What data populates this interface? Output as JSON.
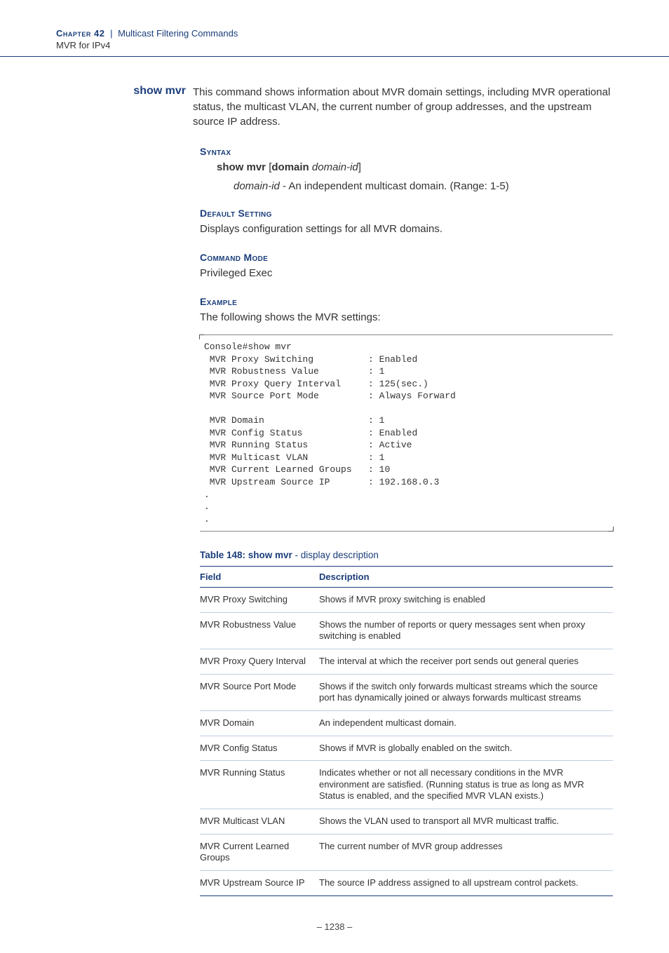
{
  "header": {
    "chapter_label": "Chapter 42",
    "chapter_title": "Multicast Filtering Commands",
    "subtitle": "MVR for IPv4"
  },
  "command": {
    "name": "show mvr",
    "description": "This command shows information about MVR domain settings, including MVR operational status, the multicast VLAN, the current number of group addresses, and the upstream source IP address."
  },
  "syntax": {
    "label": "Syntax",
    "cmd_bold1": "show mvr",
    "bracket_open": "[",
    "cmd_bold2": "domain",
    "cmd_italic": "domain-id",
    "bracket_close": "]",
    "param_name": "domain-id",
    "param_desc": " - An independent multicast domain. (Range: 1-5)"
  },
  "default_setting": {
    "label": "Default Setting",
    "text": "Displays configuration settings for all MVR domains."
  },
  "command_mode": {
    "label": "Command Mode",
    "text": "Privileged Exec"
  },
  "example": {
    "label": "Example",
    "text": "The following shows the MVR settings:",
    "code": "Console#show mvr\n MVR Proxy Switching          : Enabled\n MVR Robustness Value         : 1\n MVR Proxy Query Interval     : 125(sec.)\n MVR Source Port Mode         : Always Forward\n\n MVR Domain                   : 1\n MVR Config Status            : Enabled\n MVR Running Status           : Active\n MVR Multicast VLAN           : 1\n MVR Current Learned Groups   : 10\n MVR Upstream Source IP       : 192.168.0.3\n.\n.\n."
  },
  "table": {
    "title_bold": "Table 148: show mvr",
    "title_rest": " - display description",
    "head_field": "Field",
    "head_desc": "Description",
    "rows": [
      {
        "field": "MVR Proxy Switching",
        "desc": "Shows if MVR proxy switching is enabled"
      },
      {
        "field": "MVR Robustness Value",
        "desc": "Shows the number of reports or query messages sent when proxy switching is enabled"
      },
      {
        "field": "MVR Proxy Query Interval",
        "desc": "The interval at which the receiver port sends out general queries"
      },
      {
        "field": "MVR Source Port Mode",
        "desc": "Shows if the switch only forwards multicast streams which the source port has dynamically joined or always forwards multicast streams"
      },
      {
        "field": "MVR Domain",
        "desc": "An independent multicast domain."
      },
      {
        "field": "MVR Config Status",
        "desc": "Shows if MVR is globally enabled on the switch."
      },
      {
        "field": "MVR Running Status",
        "desc": "Indicates whether or not all necessary conditions in the MVR environment are satisfied. (Running status is true as long as MVR Status is enabled, and the specified MVR VLAN exists.)"
      },
      {
        "field": "MVR Multicast VLAN",
        "desc": "Shows the VLAN used to transport all MVR multicast traffic."
      },
      {
        "field": "MVR Current Learned Groups",
        "desc": "The current number of MVR group addresses"
      },
      {
        "field": "MVR Upstream Source IP",
        "desc": "The source IP address assigned to all upstream control packets."
      }
    ]
  },
  "page_number": "–  1238  –"
}
